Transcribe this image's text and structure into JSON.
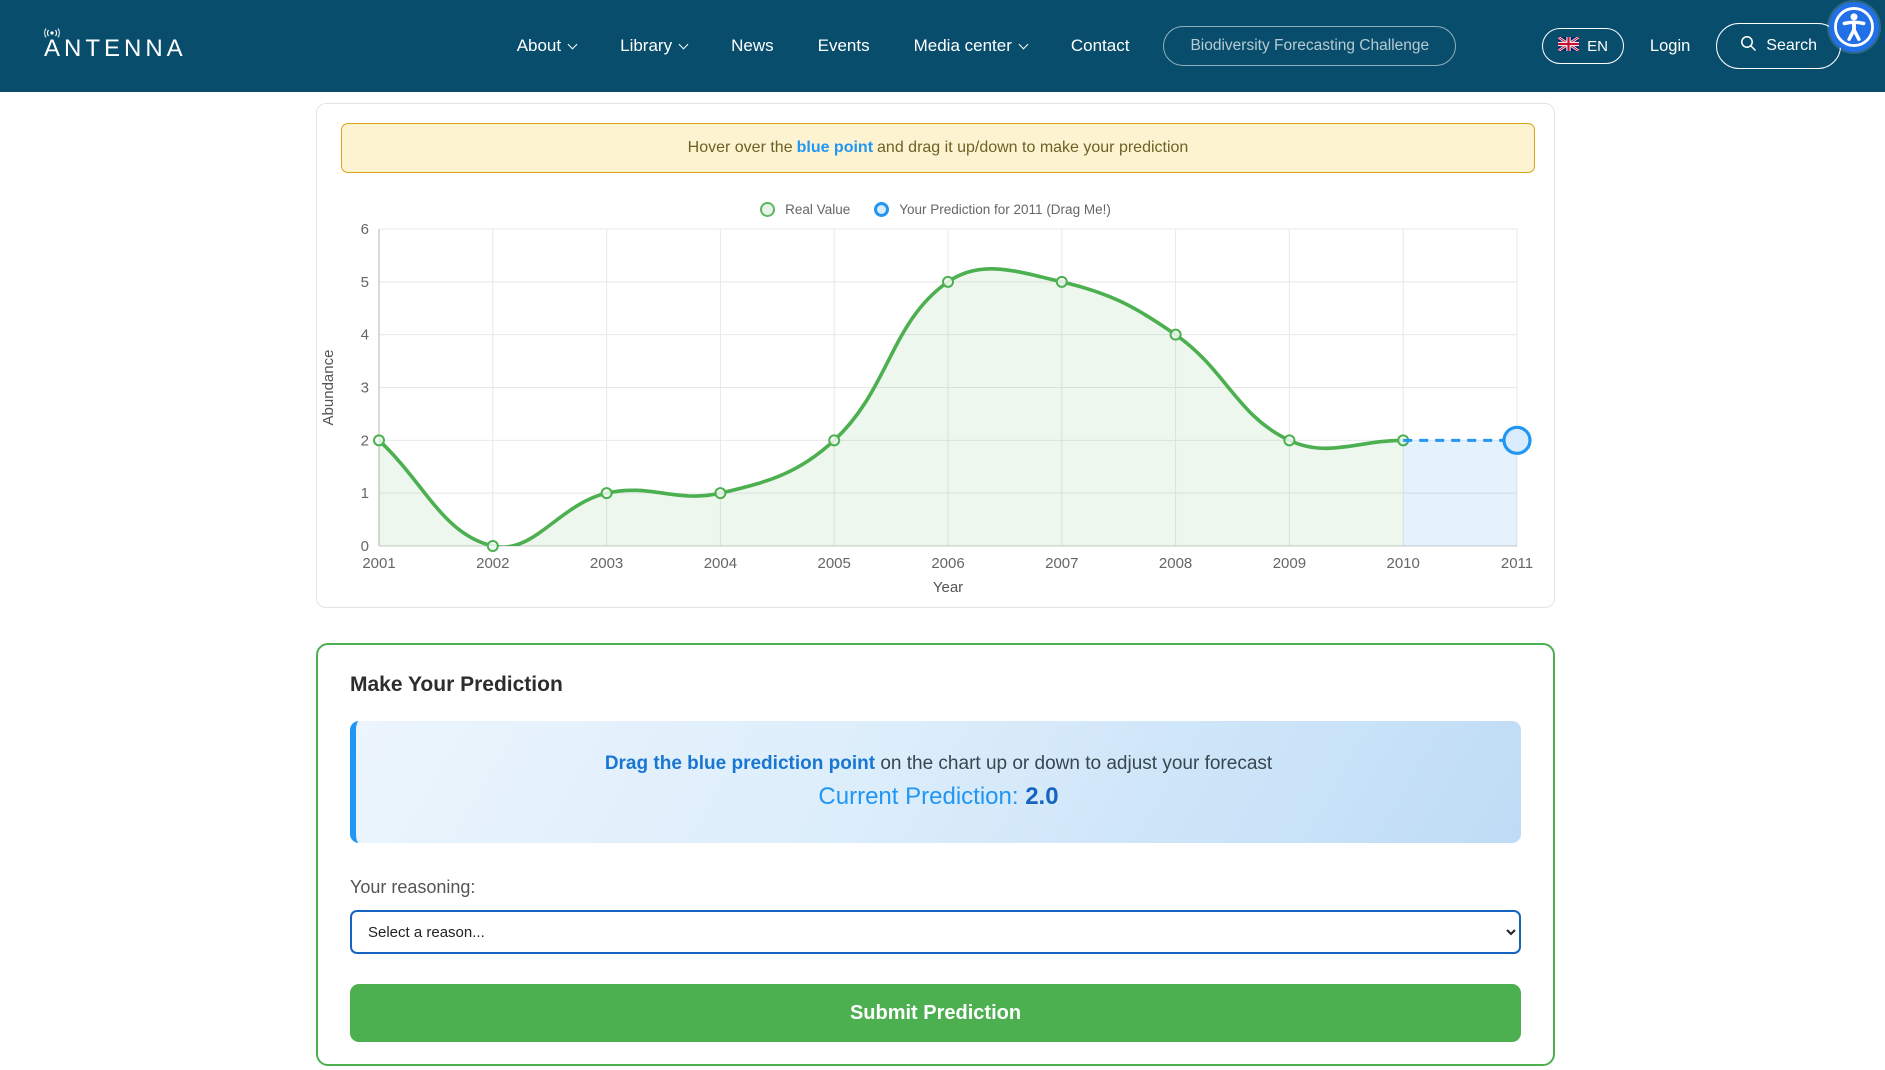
{
  "nav": {
    "brand": "ANTENNA",
    "items": [
      {
        "label": "About",
        "dropdown": true
      },
      {
        "label": "Library",
        "dropdown": true
      },
      {
        "label": "News",
        "dropdown": false
      },
      {
        "label": "Events",
        "dropdown": false
      },
      {
        "label": "Media center",
        "dropdown": true
      },
      {
        "label": "Contact",
        "dropdown": false
      }
    ],
    "challenge_button": "Biodiversity Forecasting Challenge",
    "language": "EN",
    "login": "Login",
    "search": "Search"
  },
  "banner": {
    "prefix": "Hover over the",
    "highlight": "blue point",
    "suffix": "and drag it up/down to make your prediction"
  },
  "legend": [
    {
      "label": "Real Value"
    },
    {
      "label": "Your Prediction for 2011 (Drag Me!)"
    }
  ],
  "chart_data": {
    "type": "line",
    "xlabel": "Year",
    "ylabel": "Abundance",
    "ylim": [
      0,
      6
    ],
    "yticks": [
      0,
      1,
      2,
      3,
      4,
      5,
      6
    ],
    "xticks": [
      2001,
      2002,
      2003,
      2004,
      2005,
      2006,
      2007,
      2008,
      2009,
      2010,
      2011
    ],
    "series": [
      {
        "name": "Real Value",
        "x": [
          2001,
          2002,
          2003,
          2004,
          2005,
          2006,
          2007,
          2008,
          2009,
          2010
        ],
        "values": [
          2,
          0,
          1,
          1,
          2,
          5,
          5,
          4,
          2,
          2
        ],
        "color": "#4caf50",
        "fill": "rgba(76,175,80,0.10)",
        "style": "solid"
      },
      {
        "name": "Your Prediction for 2011 (Drag Me!)",
        "x": [
          2010,
          2011
        ],
        "values": [
          2,
          2
        ],
        "color": "#2196f3",
        "fill": "rgba(33,150,243,0.12)",
        "style": "dashed"
      }
    ],
    "legend_position": "top",
    "grid": true
  },
  "prediction": {
    "title": "Make Your Prediction",
    "drag_bold": "Drag the blue prediction point",
    "drag_rest": " on the chart up or down to adjust your forecast",
    "current_label": "Current Prediction: ",
    "current_value": "2.0",
    "reason_label": "Your reasoning:",
    "reason_placeholder": "Select a reason...",
    "submit": "Submit Prediction"
  },
  "colors": {
    "nav_bg": "#084e6c",
    "accent_green": "#4caf50",
    "accent_blue": "#2196f3",
    "banner_bg": "#fdf3d1",
    "banner_border": "#d6a516",
    "a11y_blue": "#2170e8"
  }
}
